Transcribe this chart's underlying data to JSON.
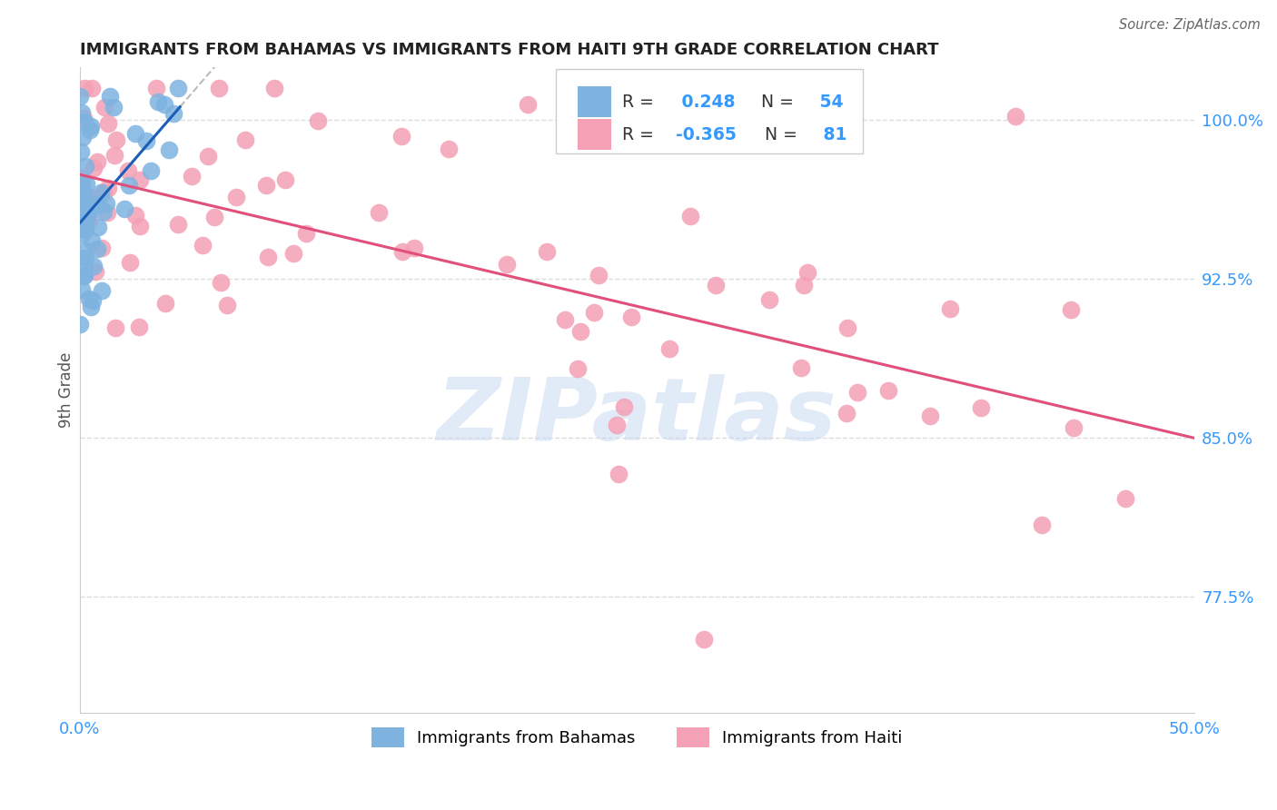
{
  "title": "IMMIGRANTS FROM BAHAMAS VS IMMIGRANTS FROM HAITI 9TH GRADE CORRELATION CHART",
  "source": "Source: ZipAtlas.com",
  "ylabel": "9th Grade",
  "xlim": [
    0.0,
    50.0
  ],
  "ylim": [
    72.0,
    102.5
  ],
  "yticks": [
    77.5,
    85.0,
    92.5,
    100.0
  ],
  "ytick_labels": [
    "77.5%",
    "85.0%",
    "92.5%",
    "100.0%"
  ],
  "xticks": [
    0.0,
    10.0,
    20.0,
    30.0,
    40.0,
    50.0
  ],
  "xtick_labels": [
    "0.0%",
    "",
    "",
    "",
    "",
    "50.0%"
  ],
  "bahamas_R": 0.248,
  "bahamas_N": 54,
  "haiti_R": -0.365,
  "haiti_N": 81,
  "bahamas_color": "#7eb3e0",
  "haiti_color": "#f4a0b5",
  "bahamas_line_color": "#1a5eb8",
  "haiti_line_color": "#e0507a",
  "watermark": "ZIPatlas",
  "background_color": "#ffffff",
  "grid_color": "#dddddd",
  "title_color": "#222222",
  "tick_color": "#3399ff",
  "legend_R_color": "#333333",
  "legend_val_color": "#3399ff"
}
